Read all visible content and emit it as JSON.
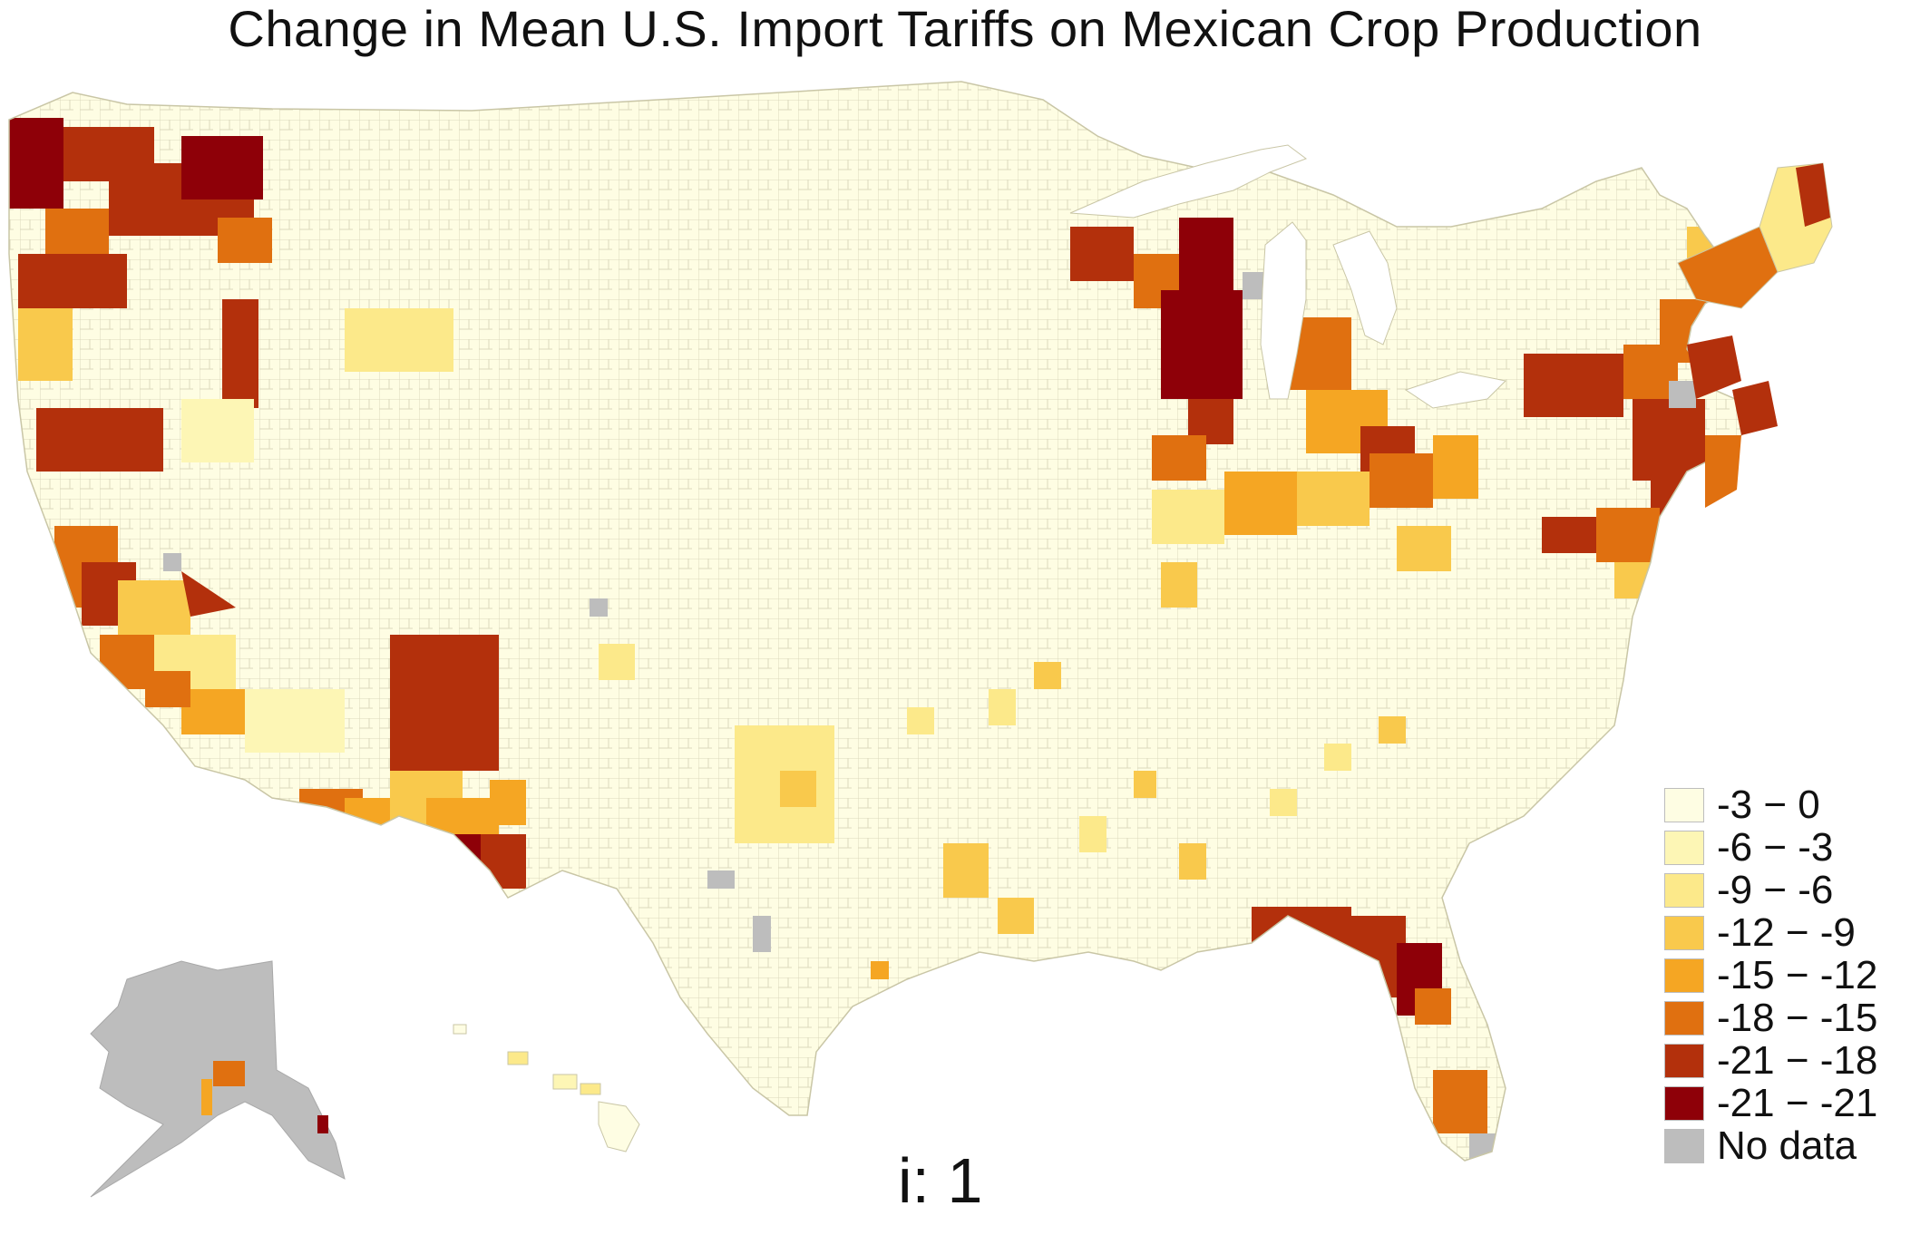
{
  "title": "Change in Mean U.S. Import Tariffs on Mexican Crop Production",
  "frame_label": "i: 1",
  "legend": {
    "items": [
      {
        "label": "-3 − 0",
        "color": "#fefde3"
      },
      {
        "label": "-6 − -3",
        "color": "#fdf6b5"
      },
      {
        "label": "-9 − -6",
        "color": "#fce98a"
      },
      {
        "label": "-12 − -9",
        "color": "#f9c94c"
      },
      {
        "label": "-15 − -12",
        "color": "#f5a623"
      },
      {
        "label": "-18 − -15",
        "color": "#e07010"
      },
      {
        "label": "-21 − -18",
        "color": "#b3300c"
      },
      {
        "label": "-21 − -21",
        "color": "#8e0008"
      },
      {
        "label": "No data",
        "color": "#bdbdbd"
      }
    ]
  },
  "map": {
    "type": "choropleth",
    "region": "United States counties",
    "base_color": "#fefde3",
    "border_color": "#d9d6b8"
  }
}
